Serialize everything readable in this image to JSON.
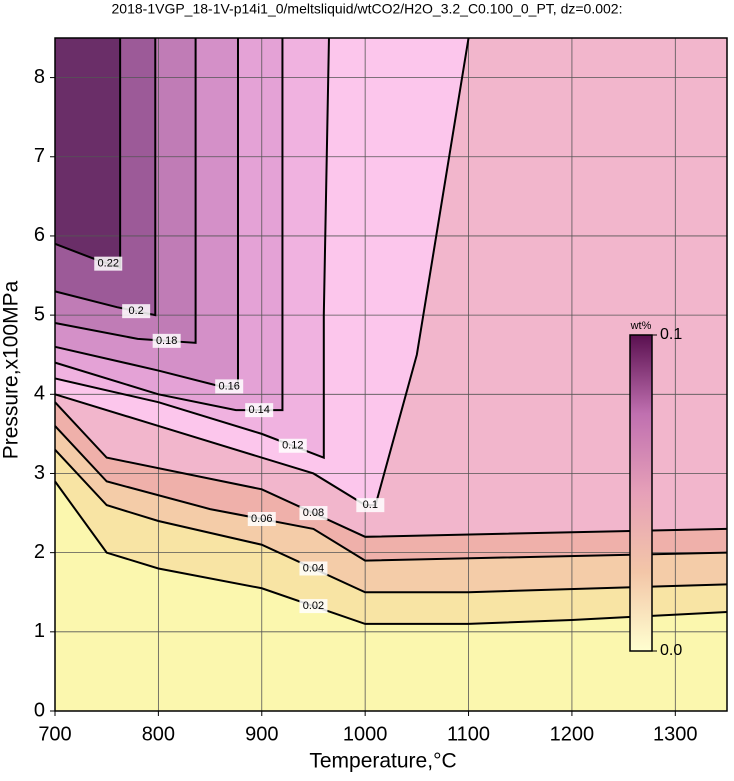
{
  "chart_data": {
    "type": "contour",
    "title": "2018-1VGP_18-1V-p14i1_0/meltsliquid/wtCO2/H2O_3.2_C0.100_0_PT, dz=0.002:",
    "x_label": "Temperature,°C",
    "y_label": "Pressure,x100MPa",
    "xlim": [
      700,
      1350
    ],
    "xticks": [
      700,
      800,
      900,
      1000,
      1100,
      1200,
      1300
    ],
    "ylim": [
      0,
      8.5
    ],
    "yticks": [
      0,
      1,
      2,
      3,
      4,
      5,
      6,
      7,
      8
    ],
    "grid": true,
    "background": "#fbf7ae",
    "line_color": "#000000",
    "contours": [
      {
        "level": 0.02,
        "fill": "#f8e4a4",
        "x": [
          700,
          750,
          800,
          900,
          1000,
          1100,
          1200,
          1350
        ],
        "y": [
          2.9,
          2.0,
          1.8,
          1.55,
          1.1,
          1.1,
          1.15,
          1.25
        ]
      },
      {
        "level": 0.04,
        "fill": "#f4cca8",
        "x": [
          700,
          750,
          800,
          900,
          1000,
          1100,
          1350
        ],
        "y": [
          3.3,
          2.6,
          2.4,
          2.1,
          1.5,
          1.5,
          1.6
        ]
      },
      {
        "level": 0.06,
        "fill": "#efb0aa",
        "x": [
          700,
          750,
          850,
          950,
          1000,
          1350
        ],
        "y": [
          3.6,
          2.9,
          2.55,
          2.3,
          1.9,
          2.0
        ]
      },
      {
        "level": 0.08,
        "fill": "#f2b6cc",
        "x": [
          700,
          750,
          900,
          1000,
          1350
        ],
        "y": [
          3.9,
          3.2,
          2.8,
          2.2,
          2.3
        ]
      },
      {
        "level": 0.1,
        "fill": "#fcc6ec",
        "x": [
          700,
          800,
          950,
          1000,
          1010,
          1050,
          1100
        ],
        "y": [
          4.0,
          3.6,
          3.0,
          2.6,
          2.6,
          4.5,
          8.5
        ]
      },
      {
        "level": 0.12,
        "fill": "#f0b2e0",
        "x": [
          700,
          800,
          900,
          960,
          960,
          965
        ],
        "y": [
          4.2,
          3.9,
          3.5,
          3.2,
          5.0,
          8.5
        ]
      },
      {
        "level": 0.14,
        "fill": "#e4a2d6",
        "x": [
          700,
          800,
          875,
          920,
          920
        ],
        "y": [
          4.4,
          4.0,
          3.8,
          3.8,
          8.5
        ]
      },
      {
        "level": 0.16,
        "fill": "#d490c8",
        "x": [
          700,
          800,
          860,
          877,
          877
        ],
        "y": [
          4.6,
          4.3,
          4.1,
          4.1,
          8.5
        ]
      },
      {
        "level": 0.18,
        "fill": "#c07cb6",
        "x": [
          700,
          780,
          836,
          836
        ],
        "y": [
          4.9,
          4.7,
          4.65,
          8.5
        ]
      },
      {
        "level": 0.2,
        "fill": "#9c5a98",
        "x": [
          700,
          760,
          797,
          797
        ],
        "y": [
          5.3,
          5.1,
          5.0,
          8.5
        ]
      },
      {
        "level": 0.22,
        "fill": "#6a2e68",
        "x": [
          700,
          740,
          763,
          763
        ],
        "y": [
          5.9,
          5.7,
          5.6,
          8.5
        ]
      }
    ],
    "colorbar": {
      "title": "wt%",
      "clim": [
        0,
        0.1
      ],
      "ticks": [
        {
          "value": 0,
          "label": "0.0"
        },
        0.1
      ],
      "colors": [
        "#ffffd0",
        "#f3c6a8",
        "#e6a0b8",
        "#c070b0",
        "#5a1050"
      ]
    }
  }
}
